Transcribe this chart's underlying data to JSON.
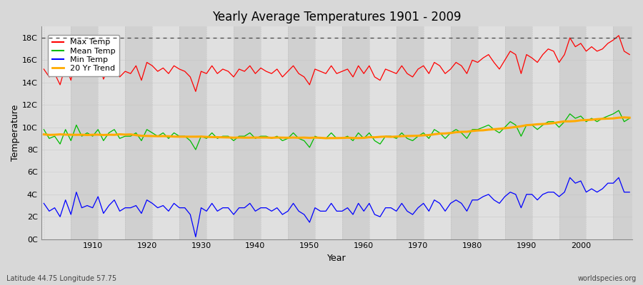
{
  "title": "Yearly Average Temperatures 1901 - 2009",
  "xlabel": "Year",
  "ylabel": "Temperature",
  "footnote_left": "Latitude 44.75 Longitude 57.75",
  "footnote_right": "worldspecies.org",
  "years": [
    1901,
    1902,
    1903,
    1904,
    1905,
    1906,
    1907,
    1908,
    1909,
    1910,
    1911,
    1912,
    1913,
    1914,
    1915,
    1916,
    1917,
    1918,
    1919,
    1920,
    1921,
    1922,
    1923,
    1924,
    1925,
    1926,
    1927,
    1928,
    1929,
    1930,
    1931,
    1932,
    1933,
    1934,
    1935,
    1936,
    1937,
    1938,
    1939,
    1940,
    1941,
    1942,
    1943,
    1944,
    1945,
    1946,
    1947,
    1948,
    1949,
    1950,
    1951,
    1952,
    1953,
    1954,
    1955,
    1956,
    1957,
    1958,
    1959,
    1960,
    1961,
    1962,
    1963,
    1964,
    1965,
    1966,
    1967,
    1968,
    1969,
    1970,
    1971,
    1972,
    1973,
    1974,
    1975,
    1976,
    1977,
    1978,
    1979,
    1980,
    1981,
    1982,
    1983,
    1984,
    1985,
    1986,
    1987,
    1988,
    1989,
    1990,
    1991,
    1992,
    1993,
    1994,
    1995,
    1996,
    1997,
    1998,
    1999,
    2000,
    2001,
    2002,
    2003,
    2004,
    2005,
    2006,
    2007,
    2008,
    2009
  ],
  "max_temp": [
    15.2,
    14.5,
    14.8,
    13.8,
    15.5,
    14.2,
    16.5,
    15.0,
    15.2,
    14.8,
    16.2,
    14.3,
    15.4,
    15.8,
    14.5,
    15.0,
    14.8,
    15.5,
    14.2,
    15.8,
    15.5,
    15.0,
    15.3,
    14.8,
    15.5,
    15.2,
    15.0,
    14.5,
    13.2,
    15.0,
    14.8,
    15.5,
    14.8,
    15.2,
    15.0,
    14.5,
    15.2,
    15.0,
    15.5,
    14.8,
    15.3,
    15.0,
    14.8,
    15.2,
    14.5,
    15.0,
    15.5,
    14.8,
    14.5,
    13.8,
    15.2,
    15.0,
    14.8,
    15.5,
    14.8,
    15.0,
    15.2,
    14.5,
    15.5,
    14.8,
    15.5,
    14.5,
    14.2,
    15.2,
    15.0,
    14.8,
    15.5,
    14.8,
    14.5,
    15.2,
    15.5,
    14.8,
    15.8,
    15.5,
    14.8,
    15.2,
    15.8,
    15.5,
    14.8,
    16.0,
    15.8,
    16.2,
    16.5,
    15.8,
    15.2,
    16.0,
    16.8,
    16.5,
    14.8,
    16.5,
    16.2,
    15.8,
    16.5,
    17.0,
    16.8,
    15.8,
    16.5,
    18.0,
    17.2,
    17.5,
    16.8,
    17.2,
    16.8,
    17.0,
    17.5,
    17.8,
    18.2,
    16.8,
    16.5
  ],
  "mean_temp": [
    9.8,
    9.0,
    9.2,
    8.5,
    9.8,
    8.8,
    10.2,
    9.2,
    9.5,
    9.2,
    9.8,
    8.8,
    9.5,
    9.8,
    9.0,
    9.2,
    9.2,
    9.5,
    8.8,
    9.8,
    9.5,
    9.2,
    9.5,
    9.0,
    9.5,
    9.2,
    9.2,
    8.8,
    8.0,
    9.2,
    9.0,
    9.5,
    9.0,
    9.2,
    9.2,
    8.8,
    9.2,
    9.2,
    9.5,
    9.0,
    9.2,
    9.2,
    9.0,
    9.2,
    8.8,
    9.0,
    9.5,
    9.0,
    8.8,
    8.2,
    9.2,
    9.0,
    9.0,
    9.5,
    9.0,
    9.0,
    9.2,
    8.8,
    9.5,
    9.0,
    9.5,
    8.8,
    8.5,
    9.2,
    9.2,
    9.0,
    9.5,
    9.0,
    8.8,
    9.2,
    9.5,
    9.0,
    9.8,
    9.5,
    9.0,
    9.5,
    9.8,
    9.5,
    9.0,
    9.8,
    9.8,
    10.0,
    10.2,
    9.8,
    9.5,
    10.0,
    10.5,
    10.2,
    9.2,
    10.2,
    10.2,
    9.8,
    10.2,
    10.5,
    10.5,
    10.0,
    10.5,
    11.2,
    10.8,
    11.0,
    10.5,
    10.8,
    10.5,
    10.8,
    11.0,
    11.2,
    11.5,
    10.5,
    10.8
  ],
  "min_temp": [
    3.2,
    2.5,
    2.8,
    2.0,
    3.5,
    2.2,
    4.2,
    2.8,
    3.0,
    2.8,
    3.8,
    2.3,
    3.0,
    3.5,
    2.5,
    2.8,
    2.8,
    3.0,
    2.3,
    3.5,
    3.2,
    2.8,
    3.0,
    2.5,
    3.2,
    2.8,
    2.8,
    2.2,
    0.2,
    2.8,
    2.5,
    3.2,
    2.5,
    2.8,
    2.8,
    2.2,
    2.8,
    2.8,
    3.2,
    2.5,
    2.8,
    2.8,
    2.5,
    2.8,
    2.2,
    2.5,
    3.2,
    2.5,
    2.2,
    1.5,
    2.8,
    2.5,
    2.5,
    3.2,
    2.5,
    2.5,
    2.8,
    2.2,
    3.2,
    2.5,
    3.2,
    2.2,
    2.0,
    2.8,
    2.8,
    2.5,
    3.2,
    2.5,
    2.2,
    2.8,
    3.2,
    2.5,
    3.5,
    3.2,
    2.5,
    3.2,
    3.5,
    3.2,
    2.5,
    3.5,
    3.5,
    3.8,
    4.0,
    3.5,
    3.2,
    3.8,
    4.2,
    4.0,
    2.8,
    4.0,
    4.0,
    3.5,
    4.0,
    4.2,
    4.2,
    3.8,
    4.2,
    5.5,
    5.0,
    5.2,
    4.2,
    4.5,
    4.2,
    4.5,
    5.0,
    5.0,
    5.5,
    4.2,
    4.2
  ],
  "ylim_min": 0,
  "ylim_max": 19,
  "yticks": [
    0,
    2,
    4,
    6,
    8,
    10,
    12,
    14,
    16,
    18
  ],
  "ytick_labels": [
    "0C",
    "2C",
    "4C",
    "6C",
    "8C",
    "10C",
    "12C",
    "14C",
    "16C",
    "18C"
  ],
  "xticks": [
    1910,
    1920,
    1930,
    1940,
    1950,
    1960,
    1970,
    1980,
    1990,
    2000
  ],
  "max_color": "#ff0000",
  "mean_color": "#00bb00",
  "min_color": "#0000ff",
  "trend_color": "#ffaa00",
  "bg_color": "#d8d8d8",
  "plot_bg_color": "#e8e8e8",
  "band_light": "#e0e0e0",
  "band_dark": "#d0d0d0",
  "dashed_line_y": 18,
  "legend_labels": [
    "Max Temp",
    "Mean Temp",
    "Min Temp",
    "20 Yr Trend"
  ]
}
